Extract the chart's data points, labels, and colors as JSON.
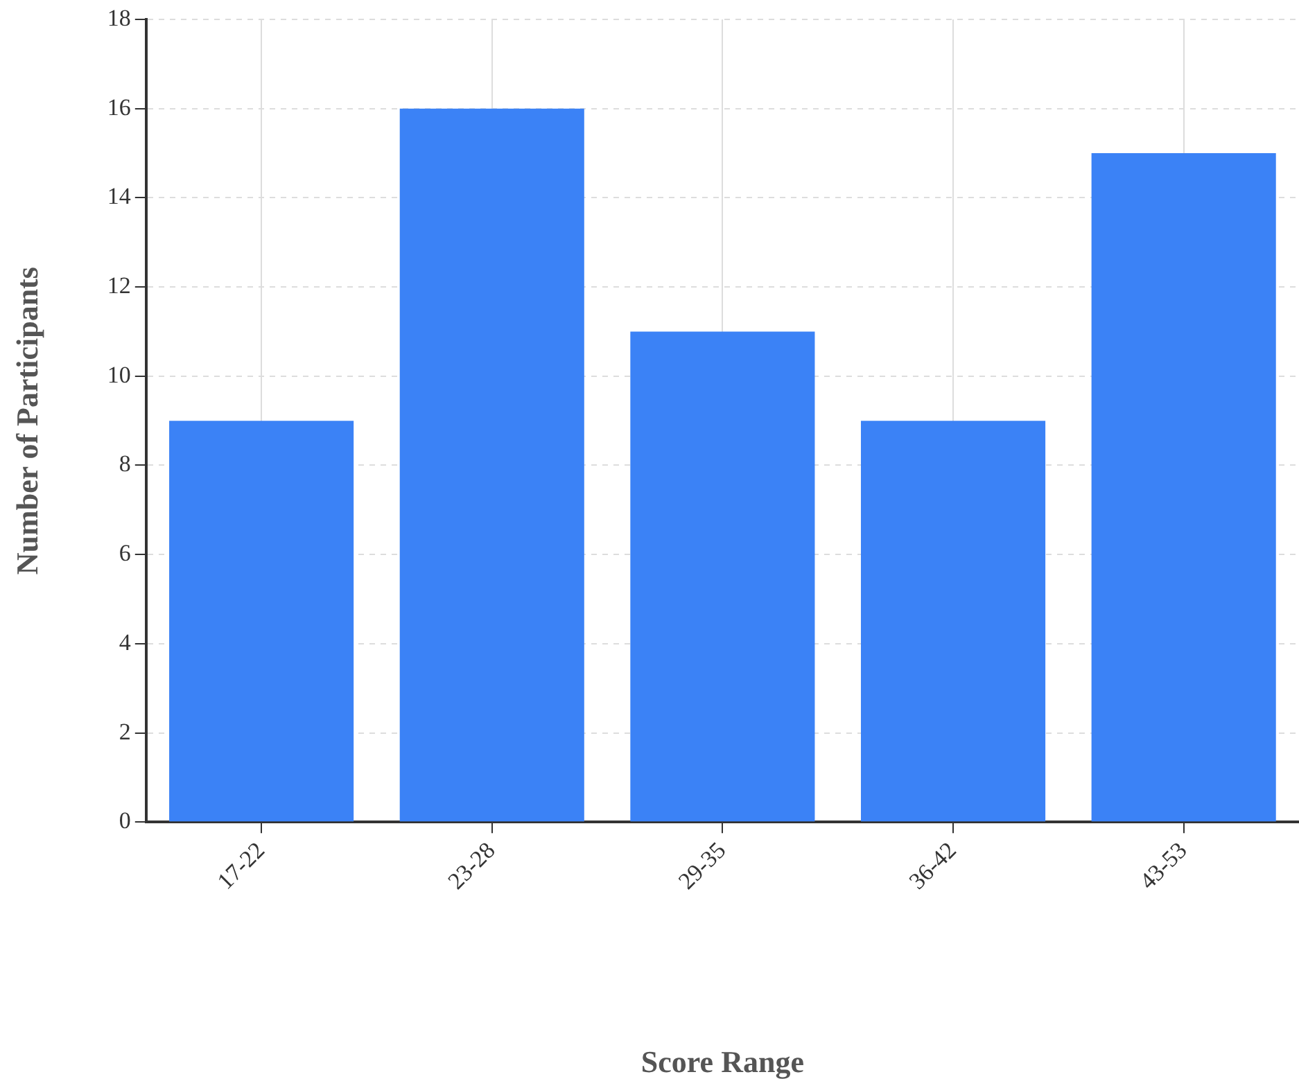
{
  "chart_data": {
    "type": "bar",
    "xlabel": "Score Range",
    "ylabel": "Number of Participants",
    "categories": [
      "17-22",
      "23-28",
      "29-35",
      "36-42",
      "43-53"
    ],
    "values": [
      9,
      16,
      11,
      9,
      15
    ],
    "color": "#3b82f6",
    "ylim": [
      0,
      18
    ],
    "yticks": [
      0,
      2,
      4,
      6,
      8,
      10,
      12,
      14,
      16,
      18
    ],
    "grid": true
  }
}
